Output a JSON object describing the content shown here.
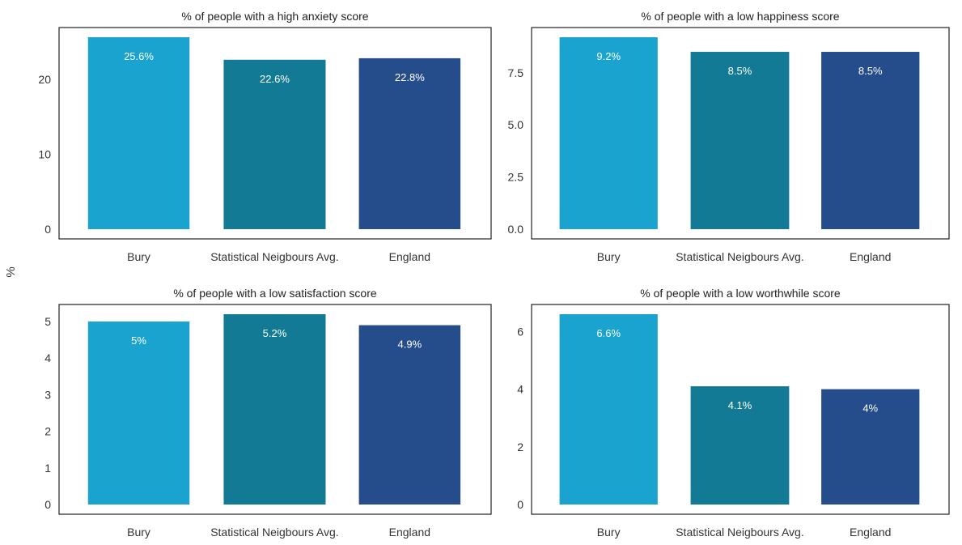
{
  "y_axis_label": "%",
  "chart_data": [
    {
      "type": "bar",
      "title": "% of people with a high anxiety score",
      "categories": [
        "Bury",
        "Statistical Neigbours Avg.",
        "England"
      ],
      "values": [
        25.6,
        22.6,
        22.8
      ],
      "data_labels": [
        "25.6%",
        "22.6%",
        "22.8%"
      ],
      "colors": [
        "#1aa3cf",
        "#137a96",
        "#264d8b"
      ],
      "ylim": [
        0,
        25.6
      ],
      "yticks": [
        0,
        10,
        20
      ],
      "ytick_labels": [
        "0",
        "10",
        "20"
      ],
      "grid": false
    },
    {
      "type": "bar",
      "title": "% of people with a low happiness score",
      "categories": [
        "Bury",
        "Statistical Neigbours Avg.",
        "England"
      ],
      "values": [
        9.2,
        8.5,
        8.5
      ],
      "data_labels": [
        "9.2%",
        "8.5%",
        "8.5%"
      ],
      "colors": [
        "#1aa3cf",
        "#137a96",
        "#264d8b"
      ],
      "ylim": [
        0,
        9.2
      ],
      "yticks": [
        0,
        2.5,
        5,
        7.5
      ],
      "ytick_labels": [
        "0.0",
        "2.5",
        "5.0",
        "7.5"
      ],
      "grid": false
    },
    {
      "type": "bar",
      "title": "% of people with a low satisfaction score",
      "categories": [
        "Bury",
        "Statistical Neigbours Avg.",
        "England"
      ],
      "values": [
        5.0,
        5.2,
        4.9
      ],
      "data_labels": [
        "5%",
        "5.2%",
        "4.9%"
      ],
      "colors": [
        "#1aa3cf",
        "#137a96",
        "#264d8b"
      ],
      "ylim": [
        0,
        5.2
      ],
      "yticks": [
        0,
        1,
        2,
        3,
        4,
        5
      ],
      "ytick_labels": [
        "0",
        "1",
        "2",
        "3",
        "4",
        "5"
      ],
      "grid": false
    },
    {
      "type": "bar",
      "title": "% of people with a low worthwhile score",
      "categories": [
        "Bury",
        "Statistical Neigbours Avg.",
        "England"
      ],
      "values": [
        6.6,
        4.1,
        4.0
      ],
      "data_labels": [
        "6.6%",
        "4.1%",
        "4%"
      ],
      "colors": [
        "#1aa3cf",
        "#137a96",
        "#264d8b"
      ],
      "ylim": [
        0,
        6.6
      ],
      "yticks": [
        0,
        2,
        4,
        6
      ],
      "ytick_labels": [
        "0",
        "2",
        "4",
        "6"
      ],
      "grid": false
    }
  ]
}
